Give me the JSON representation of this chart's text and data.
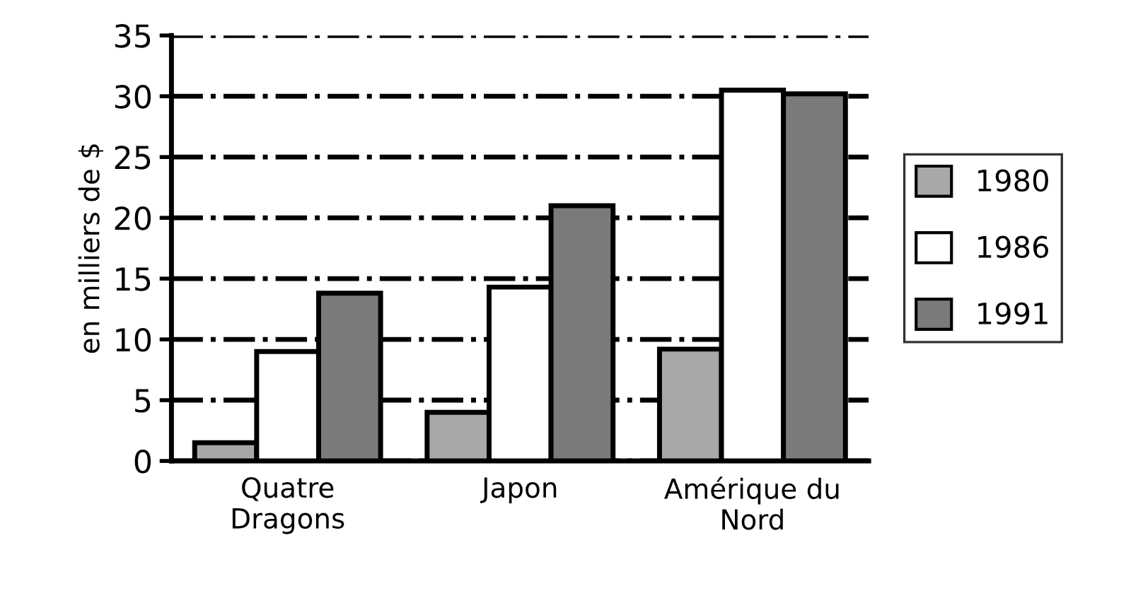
{
  "chart_data": {
    "type": "bar",
    "ylabel": "en milliers de $",
    "categories": [
      "Quatre\nDragons",
      "Japon",
      "Amérique du\nNord"
    ],
    "series": [
      {
        "name": "1980",
        "color": "#a8a8a8",
        "values": [
          1.5,
          4,
          9.2
        ]
      },
      {
        "name": "1986",
        "color": "#ffffff",
        "values": [
          9,
          14.3,
          30.5
        ]
      },
      {
        "name": "1991",
        "color": "#7a7a7a",
        "values": [
          13.8,
          21,
          30.2
        ]
      }
    ],
    "ylim": [
      0,
      35
    ],
    "yticks": [
      0,
      5,
      10,
      15,
      20,
      25,
      30,
      35
    ],
    "grid": "y",
    "line_style": "dashed",
    "legend": "right"
  }
}
